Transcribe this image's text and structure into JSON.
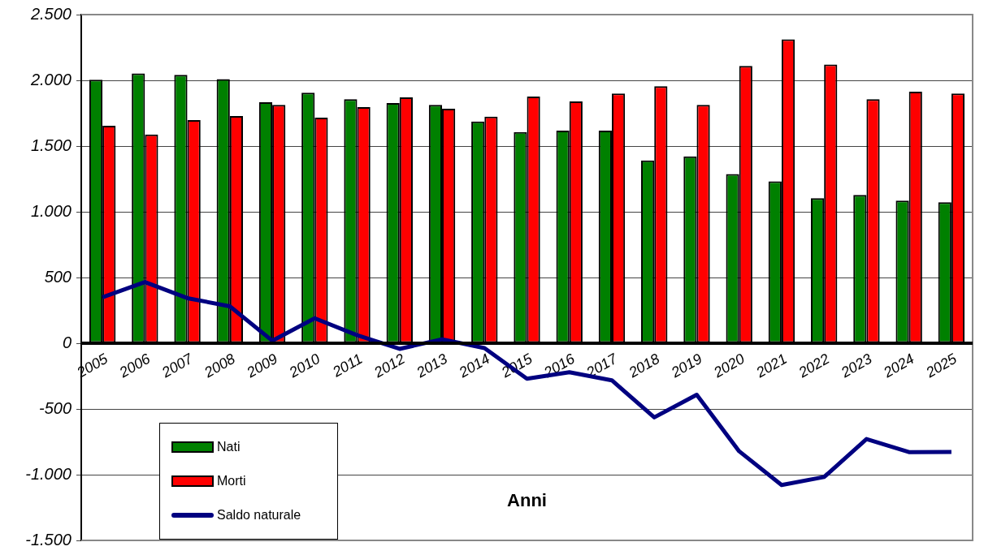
{
  "chart_data": {
    "type": "bar",
    "xlabel": "Anni",
    "categories": [
      "2005",
      "2006",
      "2007",
      "2008",
      "2009",
      "2010",
      "2011",
      "2012",
      "2013",
      "2014",
      "2015",
      "2016",
      "2017",
      "2018",
      "2019",
      "2020",
      "2021",
      "2022",
      "2023",
      "2024",
      "2025"
    ],
    "series": [
      {
        "name": "Nati",
        "color": "#008000",
        "values": [
          2005,
          2053,
          2041,
          2010,
          1833,
          1906,
          1857,
          1827,
          1814,
          1686,
          1606,
          1618,
          1618,
          1391,
          1422,
          1287,
          1232,
          1103,
          1128,
          1085,
          1073
        ]
      },
      {
        "name": "Morti",
        "color": "#ff0000",
        "values": [
          1655,
          1588,
          1698,
          1729,
          1814,
          1716,
          1796,
          1870,
          1784,
          1723,
          1876,
          1839,
          1900,
          1955,
          1814,
          2109,
          2311,
          2121,
          1857,
          1913,
          1900
        ]
      },
      {
        "name": "Saldo naturale",
        "type": "line",
        "color": "#000080",
        "values": [
          350,
          465,
          343,
          281,
          19,
          190,
          61,
          -43,
          30,
          -37,
          -270,
          -221,
          -282,
          -564,
          -392,
          -822,
          -1079,
          -1018,
          -729,
          -828,
          -827
        ]
      }
    ],
    "ylim": [
      -1500,
      2500
    ],
    "yticks": [
      {
        "value": -1500,
        "label": "-1.500"
      },
      {
        "value": -1000,
        "label": "-1.000"
      },
      {
        "value": -500,
        "label": "-500"
      },
      0,
      500,
      {
        "value": 1000,
        "label": "1.000"
      },
      {
        "value": 1500,
        "label": "1.500"
      },
      {
        "value": 2000,
        "label": "2.000"
      },
      {
        "value": 2500,
        "label": "2.500"
      }
    ],
    "grid": "y",
    "legend": "bottom left",
    "marker": "none",
    "line_style": "solid"
  }
}
